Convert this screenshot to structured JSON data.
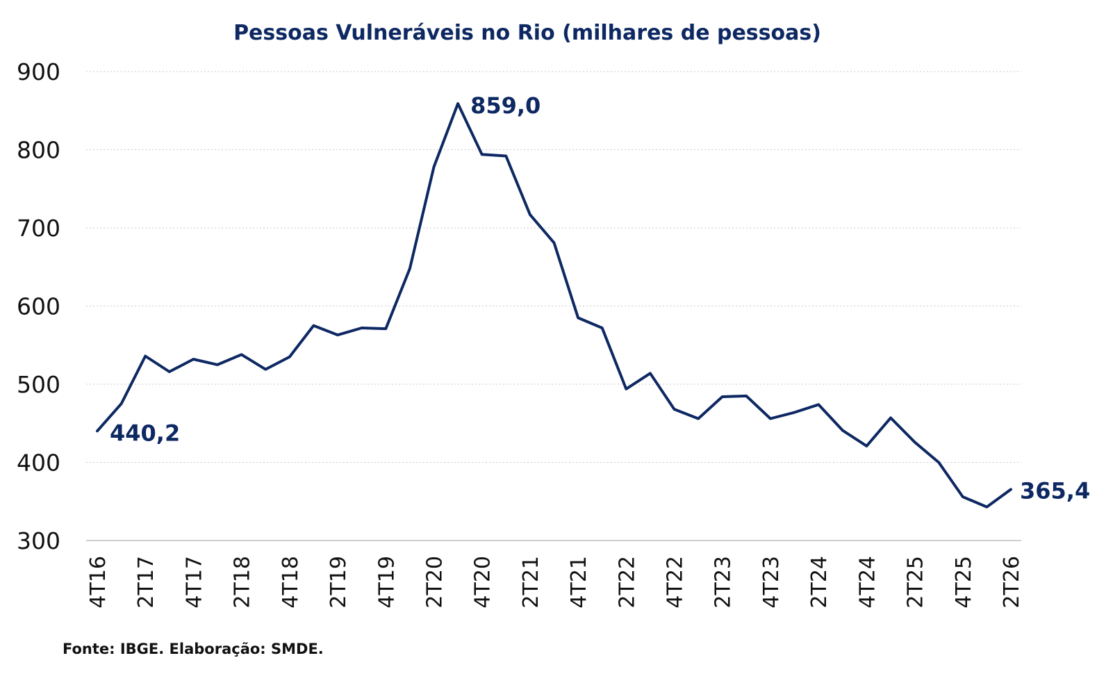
{
  "chart_data": {
    "type": "line",
    "title": "Pessoas Vulneráveis no Rio (milhares de pessoas)",
    "xlabel": "",
    "ylabel": "",
    "ylim": [
      300,
      900
    ],
    "yticks": [
      "900",
      "800",
      "700",
      "600",
      "500",
      "400",
      "300"
    ],
    "ytick_values": [
      900,
      800,
      700,
      600,
      500,
      400,
      300
    ],
    "grid": true,
    "legend": "none",
    "color": "#0d2862",
    "x": [
      "4T16",
      "1T17",
      "2T17",
      "3T17",
      "4T17",
      "1T18",
      "2T18",
      "3T18",
      "4T18",
      "1T19",
      "2T19",
      "3T19",
      "4T19",
      "1T20",
      "2T20",
      "3T20",
      "4T20",
      "1T21",
      "2T21",
      "3T21",
      "4T21",
      "1T22",
      "2T22",
      "3T22",
      "4T22",
      "1T23",
      "2T23",
      "3T23",
      "4T23",
      "1T24",
      "2T24",
      "3T24",
      "4T24",
      "1T25",
      "2T25",
      "3T25",
      "4T25",
      "1T26",
      "2T26"
    ],
    "xtick_labels": [
      "4T16",
      "2T17",
      "4T17",
      "2T18",
      "4T18",
      "2T19",
      "4T19",
      "2T20",
      "4T20",
      "2T21",
      "4T21",
      "2T22",
      "4T22",
      "2T23",
      "4T23",
      "2T24",
      "4T24",
      "2T25",
      "4T25",
      "2T26"
    ],
    "series": [
      {
        "values": [
          440.2,
          475,
          536,
          516,
          532,
          525,
          538,
          519,
          535,
          575,
          563,
          572,
          571,
          648,
          778,
          859.0,
          794,
          792,
          717,
          681,
          585,
          572,
          494,
          514,
          468,
          456,
          484,
          485,
          456,
          464,
          474,
          441,
          421,
          457,
          426,
          400,
          356,
          343,
          365.4
        ]
      }
    ],
    "annotations": [
      {
        "x": "4T16",
        "value": 440.2,
        "text": "440,2"
      },
      {
        "x": "3T20",
        "value": 859.0,
        "text": "859,0"
      },
      {
        "x": "2T26",
        "value": 365.4,
        "text": "365,4"
      }
    ]
  },
  "source": "Fonte: IBGE. Elaboração: SMDE."
}
